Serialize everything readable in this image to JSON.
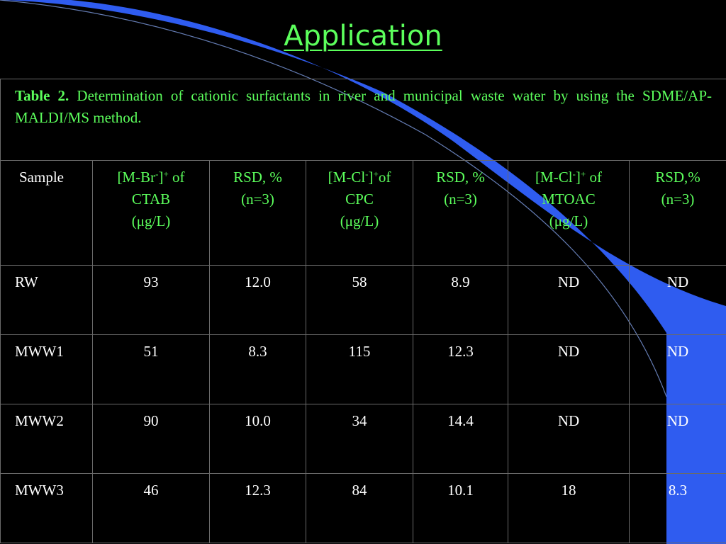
{
  "slide_title": "Application",
  "caption": {
    "label": "Table 2.",
    "text": "Determination of cationic surfactants in river and municipal waste water by using the SDME/AP-MALDI/MS method."
  },
  "columns": {
    "sample": "Sample",
    "ctab_pre": "[M-Br",
    "ctab_sup1": "-",
    "ctab_mid": "]",
    "ctab_sup2": "+",
    "ctab_post": " of",
    "ctab_name": "CTAB",
    "ctab_unit": "(μg/L)",
    "rsd1_a": "RSD, %",
    "rsd1_b": "(n=3)",
    "cpc_pre": "[M-Cl",
    "cpc_sup1": "-",
    "cpc_mid": "]",
    "cpc_sup2": "+",
    "cpc_post": "of",
    "cpc_name": "CPC",
    "cpc_unit": "(μg/L)",
    "rsd2_a": "RSD, %",
    "rsd2_b": "(n=3)",
    "mtoac_pre": "[M-Cl",
    "mtoac_sup1": "-",
    "mtoac_mid": "]",
    "mtoac_sup2": "+",
    "mtoac_post": " of",
    "mtoac_name": "MTOAC",
    "mtoac_unit": "(μg/L)",
    "rsd3_a": "RSD,%",
    "rsd3_b": "(n=3)"
  },
  "rows": [
    [
      "RW",
      "93",
      "12.0",
      "58",
      "8.9",
      "ND",
      "ND"
    ],
    [
      "MWW1",
      "51",
      "8.3",
      "115",
      "12.3",
      "ND",
      "ND"
    ],
    [
      "MWW2",
      "90",
      "10.0",
      "34",
      "14.4",
      "ND",
      "ND"
    ],
    [
      "MWW3",
      "46",
      "12.3",
      "84",
      "10.1",
      "18",
      "8.3"
    ]
  ],
  "colors": {
    "title": "#5cff5c",
    "header": "#5cff5c",
    "body_text": "#ffffff",
    "background": "#000000",
    "accent": "#2f5cf0"
  }
}
